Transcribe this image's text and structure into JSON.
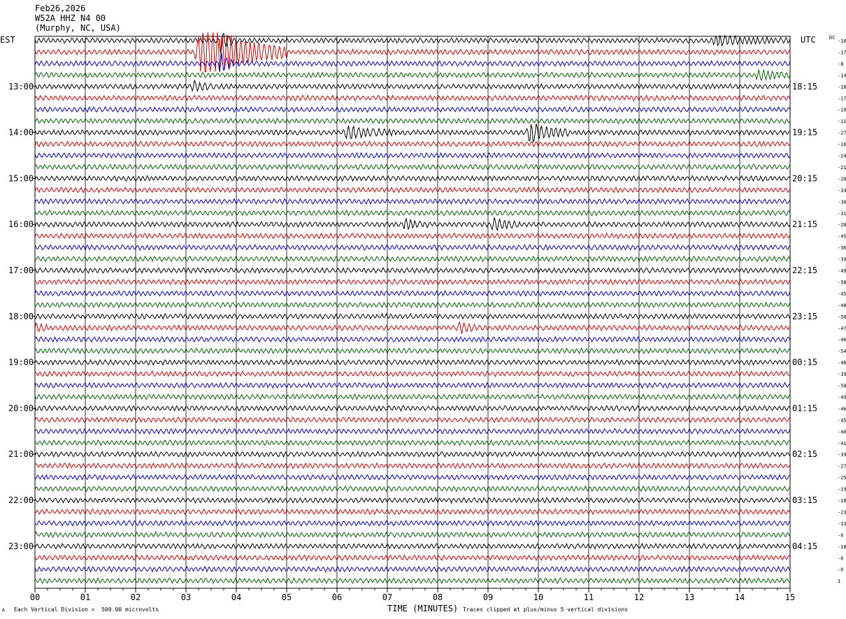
{
  "header": {
    "date": "Feb26,2026",
    "station": "W52A HHZ N4 00",
    "location": "(Murphy, NC, USA)"
  },
  "left_zone": "EST",
  "right_zone": "UTC",
  "dc_label": "DC",
  "footer": {
    "xlabel": "TIME (MINUTES)",
    "scale_note": "Each Vertical Division =  500.00 microvolts",
    "clip_note": "Traces clipped at plus/minus 5 vertical divisions",
    "corner_mark": "A"
  },
  "colors": {
    "cycle": [
      "#000000",
      "#dd0000",
      "#0000dd",
      "#006600"
    ],
    "grid": "#000000"
  },
  "chart_data": {
    "type": "helicorder",
    "x_unit": "minutes",
    "xlim": [
      0,
      15
    ],
    "x_ticks": [
      "00",
      "01",
      "02",
      "03",
      "04",
      "05",
      "06",
      "07",
      "08",
      "09",
      "10",
      "11",
      "12",
      "13",
      "14",
      "15"
    ],
    "trace_count": 48,
    "traces_per_hour": 4,
    "left_hour_labels": [
      "13:00",
      "14:00",
      "15:00",
      "16:00",
      "17:00",
      "18:00",
      "19:00",
      "20:00",
      "21:00",
      "22:00",
      "23:00"
    ],
    "right_hour_labels": [
      "18:15",
      "19:15",
      "20:15",
      "21:15",
      "22:15",
      "23:15",
      "00:15",
      "01:15",
      "02:15",
      "03:15",
      "04:15"
    ],
    "hour_label_first_trace": 4,
    "dc_offsets": [
      "-10",
      "-17",
      "-8",
      "-14",
      "-18",
      "-17",
      "-10",
      "-11",
      "-27",
      "-16",
      "-24",
      "-21",
      "-28",
      "-33",
      "-30",
      "-31",
      "-28",
      "-45",
      "-36",
      "-39",
      "-49",
      "-58",
      "-45",
      "-48",
      "-50",
      "-47",
      "-46",
      "-54",
      "-48",
      "-39",
      "-50",
      "-49",
      "-46",
      "-45",
      "-40",
      "-41",
      "-39",
      "-27",
      "-25",
      "-19",
      "-18",
      "-23",
      "-13",
      "-6",
      "-18",
      "-6",
      "-0",
      "1"
    ],
    "events": [
      {
        "trace": 1,
        "minute_start": 3.15,
        "minute_end": 5.0,
        "amplitude": 4.0,
        "note": "earthquake, clipped"
      },
      {
        "trace": 0,
        "minute_start": 3.65,
        "minute_end": 3.95,
        "amplitude": 1.6
      },
      {
        "trace": 2,
        "minute_start": 3.65,
        "minute_end": 3.95,
        "amplitude": 1.6
      },
      {
        "trace": 0,
        "minute_start": 13.4,
        "minute_end": 15.0,
        "amplitude": 0.5
      },
      {
        "trace": 3,
        "minute_start": 14.3,
        "minute_end": 15.0,
        "amplitude": 0.6
      },
      {
        "trace": 4,
        "minute_start": 3.1,
        "minute_end": 3.6,
        "amplitude": 0.6
      },
      {
        "trace": 8,
        "minute_start": 6.1,
        "minute_end": 7.2,
        "amplitude": 0.7
      },
      {
        "trace": 8,
        "minute_start": 9.75,
        "minute_end": 10.6,
        "amplitude": 1.3
      },
      {
        "trace": 16,
        "minute_start": 7.3,
        "minute_end": 7.8,
        "amplitude": 0.6
      },
      {
        "trace": 16,
        "minute_start": 9.05,
        "minute_end": 9.6,
        "amplitude": 0.8
      },
      {
        "trace": 25,
        "minute_start": 8.4,
        "minute_end": 8.75,
        "amplitude": 0.8
      },
      {
        "trace": 25,
        "minute_start": 0.0,
        "minute_end": 0.25,
        "amplitude": 0.6
      }
    ]
  }
}
